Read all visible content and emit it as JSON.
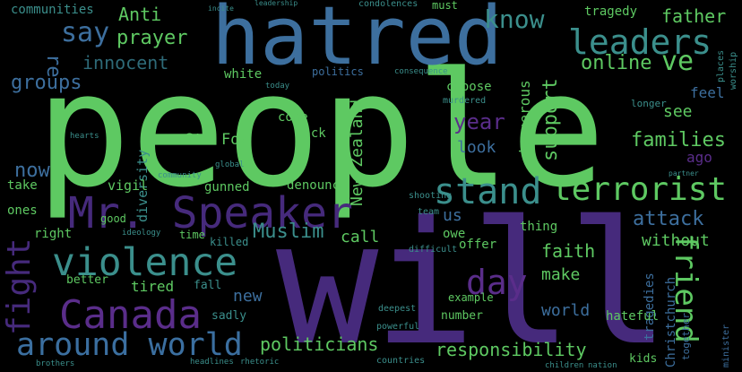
{
  "colors": {
    "background": "#000000",
    "green": "#5ec962",
    "teal": "#3b8f8c",
    "blue": "#3d6f9e",
    "purple": "#462a7c",
    "violet": "#5a2d8a",
    "dim": "#2b2d3a"
  },
  "words": {
    "people": "people",
    "will": "will",
    "hatred": "hatred",
    "mr_speaker": "Mr. Speaker",
    "canada": "Canada",
    "around_world": "around world",
    "violence": "violence",
    "stand": "stand",
    "terrorist": "terrorist",
    "leaders": "leaders",
    "know": "know",
    "say": "say",
    "prayer": "prayer",
    "innocent": "innocent",
    "communities": "communities",
    "anti": "Anti",
    "groups": "groups",
    "re": "re",
    "online": "online",
    "ve": "ve",
    "father": "father",
    "tragedy": "tragedy",
    "friend": "friend",
    "day": "day",
    "year": "year",
    "ste_foy": "Ste Foy",
    "fight": "fight",
    "now": "now",
    "new_zealand": "New Zealand",
    "families": "families",
    "support": "support",
    "look": "look",
    "see": "see",
    "feel": "feel",
    "ago": "ago",
    "attack": "attack",
    "without": "without",
    "call": "call",
    "muslim": "Muslim",
    "faith": "faith",
    "make": "make",
    "tired": "tired",
    "politicians": "politicians",
    "responsibility": "responsibility",
    "world": "world",
    "christchurch": "Christchurch",
    "tragedies": "tragedies",
    "us": "us",
    "owe": "owe",
    "thing": "thing",
    "offer": "offer",
    "choose": "choose",
    "dangerous": "dangerous",
    "come": "come",
    "back": "back",
    "diversity": "diversity",
    "vigil": "vigil",
    "gunned": "gunned",
    "denounce": "denounce",
    "white": "white",
    "killed": "killed",
    "time": "time",
    "right": "right",
    "ones": "ones",
    "take": "take",
    "better": "better",
    "fall": "fall",
    "new": "new",
    "sadly": "sadly",
    "number": "number",
    "hateful": "hateful",
    "kids": "kids",
    "good": "good",
    "must": "must",
    "politics": "politics",
    "example": "example",
    "difficult": "difficult",
    "powerful": "powerful",
    "deepest": "deepest",
    "team": "team",
    "shooting": "shooting",
    "condolences": "condolences",
    "murdered": "murdered",
    "longer": "longer",
    "places": "places",
    "worship": "worship",
    "today": "today",
    "hearts": "hearts",
    "global": "global",
    "community": "community",
    "ideology": "ideology",
    "together": "together",
    "countries": "countries",
    "headlines": "headlines",
    "rhetoric": "rhetoric",
    "brothers": "brothers",
    "children": "children",
    "nation": "nation",
    "minister": "minister",
    "incite": "incite",
    "partner": "partner",
    "leadership": "leadership",
    "consequence": "consequence"
  }
}
